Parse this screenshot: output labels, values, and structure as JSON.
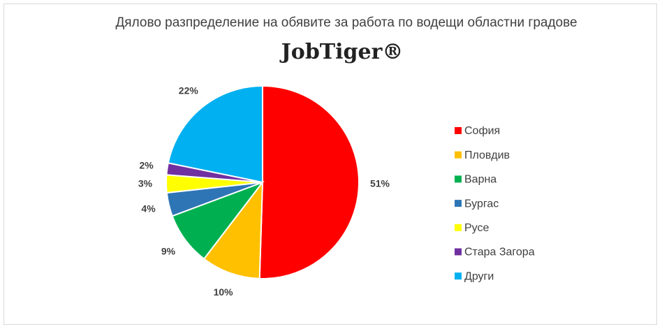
{
  "chart_data": {
    "type": "pie",
    "title": "Дялово разпределение на обявите за работа по водещи областни градове",
    "logo": "JobTiger®",
    "categories": [
      "София",
      "Пловдив",
      "Варна",
      "Бургас",
      "Русе",
      "Стара Загора",
      "Други"
    ],
    "values": [
      51,
      10,
      9,
      4,
      3,
      2,
      22
    ],
    "value_labels": [
      "51%",
      "10%",
      "9%",
      "4%",
      "3%",
      "2%",
      "22%"
    ],
    "colors": [
      "#ff0000",
      "#ffc000",
      "#00b050",
      "#2e75b6",
      "#ffff00",
      "#7030a0",
      "#00b0f0"
    ],
    "legend": "right"
  }
}
